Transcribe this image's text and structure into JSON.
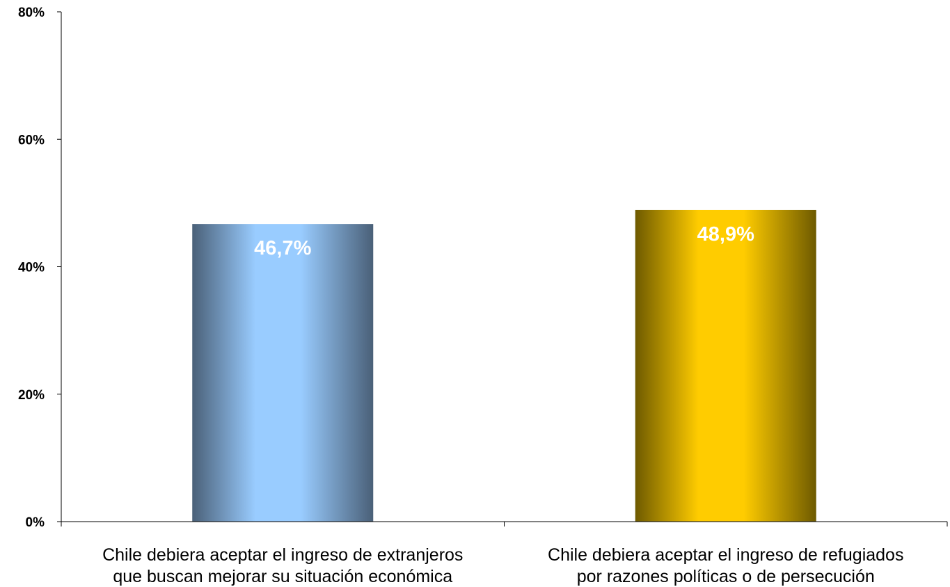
{
  "chart_data": {
    "type": "bar",
    "categories": [
      [
        "Chile debiera aceptar el ingreso de extranjeros",
        "que buscan mejorar su situación económica"
      ],
      [
        "Chile debiera aceptar el ingreso de refugiados",
        "por razones políticas o de persecución"
      ]
    ],
    "values": [
      46.7,
      48.9
    ],
    "data_labels": [
      "46,7%",
      "48,9%"
    ],
    "title": "",
    "xlabel": "",
    "ylabel": "",
    "ylim": [
      0,
      80
    ],
    "yticks": [
      0,
      20,
      40,
      60,
      80
    ],
    "ytick_labels": [
      "0%",
      "20%",
      "40%",
      "60%",
      "80%"
    ],
    "grid": false,
    "legend": "none",
    "colors": {
      "bar1": {
        "edge": "#4a6078",
        "center": "#99ccff"
      },
      "bar2": {
        "edge": "#6e5a00",
        "center": "#ffcc00"
      },
      "axis": "#000000"
    }
  }
}
